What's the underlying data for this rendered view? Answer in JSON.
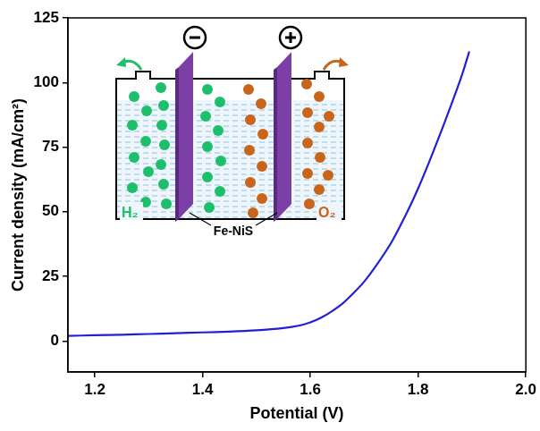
{
  "chart_data": {
    "type": "line",
    "x_label": "Potential (V)",
    "y_label": "Current density (mA/cm²)",
    "series": [
      {
        "name": "Fe-NiS",
        "color": "#2121d4",
        "x": [
          1.15,
          1.2,
          1.25,
          1.3,
          1.35,
          1.4,
          1.45,
          1.5,
          1.55,
          1.58,
          1.6,
          1.62,
          1.64,
          1.66,
          1.68,
          1.7,
          1.72,
          1.75,
          1.78,
          1.8,
          1.82,
          1.85,
          1.88,
          1.895
        ],
        "values": [
          2.0,
          2.2,
          2.4,
          2.7,
          3.0,
          3.3,
          3.6,
          4.1,
          5.0,
          6.0,
          7.2,
          9.0,
          11.5,
          14.5,
          18.5,
          23,
          28.5,
          38,
          50,
          59,
          69,
          85,
          102,
          112
        ]
      }
    ],
    "xlim": [
      1.15,
      2.0
    ],
    "xticks": [
      1.2,
      1.4,
      1.6,
      1.8,
      {
        "value": 2.0,
        "label": "2.0"
      }
    ],
    "ylim": [
      -12,
      125
    ],
    "yticks": [
      0,
      25,
      50,
      75,
      100,
      125
    ],
    "grid": false,
    "inset": {
      "cathode_gas": "H₂",
      "electrode": "Fe-NiS",
      "anode_gas": "O₂"
    }
  }
}
